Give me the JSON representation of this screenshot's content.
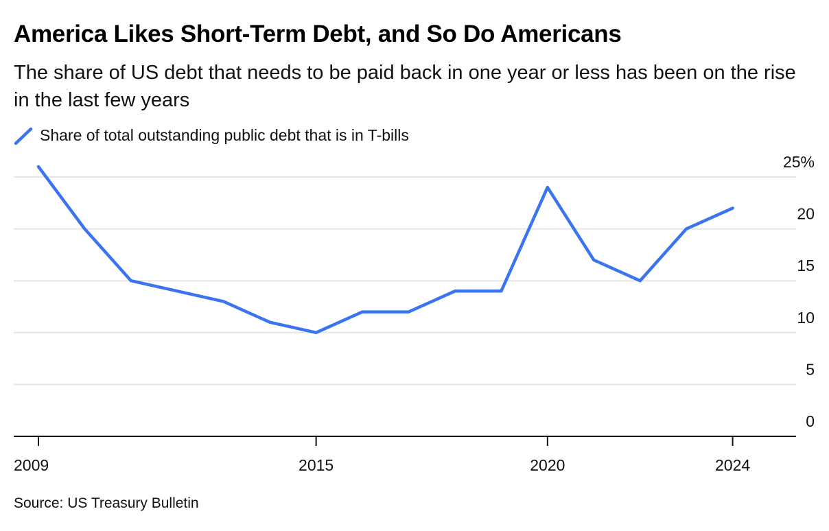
{
  "header": {
    "title": "America Likes Short-Term Debt, and So Do Americans",
    "subtitle": "The share of US debt that needs to be paid back in one year or less has been on the rise in the last few years"
  },
  "footer": {
    "source": "Source: US Treasury Bulletin"
  },
  "colors": {
    "series": "#3a74f0",
    "grid": "#e6e6e6",
    "axis": "#111111"
  },
  "chart_data": {
    "type": "line",
    "title": "America Likes Short-Term Debt, and So Do Americans",
    "subtitle": "The share of US debt that needs to be paid back in one year or less has been on the rise in the last few years",
    "xlabel": "",
    "ylabel": "",
    "x": [
      2009,
      2010,
      2011,
      2012,
      2013,
      2014,
      2015,
      2016,
      2017,
      2018,
      2019,
      2020,
      2021,
      2022,
      2023,
      2024
    ],
    "series": [
      {
        "name": "Share of total outstanding public debt that is in T-bills",
        "values": [
          26,
          20,
          15,
          14,
          13,
          11,
          10,
          12,
          12,
          14,
          14,
          24,
          17,
          15,
          20,
          22
        ]
      }
    ],
    "ylim": [
      0,
      25
    ],
    "yticks": [
      0,
      5,
      10,
      15,
      20,
      25
    ],
    "ytick_labels": [
      "0",
      "5",
      "10",
      "15",
      "20",
      "25%"
    ],
    "xlim": [
      2009,
      2025.4
    ],
    "xticks": [
      2009,
      2015,
      2020,
      2024
    ],
    "xtick_labels": [
      "2009",
      "2015",
      "2020",
      "2024"
    ],
    "grid": true,
    "y_axis_side": "right",
    "legend_position": "top-left"
  }
}
